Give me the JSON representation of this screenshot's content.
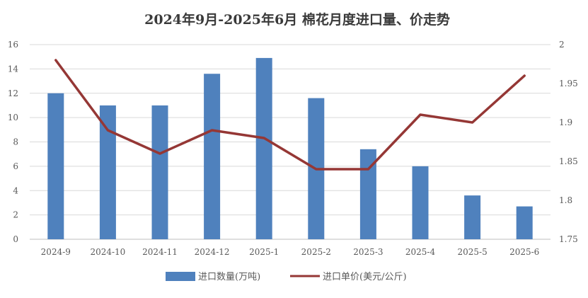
{
  "chart_data": {
    "type": "bar",
    "title": "2024年9月-2025年6月 棉花月度进口量、价走势",
    "categories": [
      "2024-9",
      "2024-10",
      "2024-11",
      "2024-12",
      "2025-1",
      "2025-2",
      "2025-3",
      "2025-4",
      "2025-5",
      "2025-6"
    ],
    "series": [
      {
        "name": "进口数量(万吨)",
        "type": "bar",
        "axis": "left",
        "color": "#4f81bd",
        "values": [
          12.0,
          11.0,
          11.0,
          13.6,
          14.9,
          11.6,
          7.4,
          6.0,
          3.6,
          2.7
        ]
      },
      {
        "name": "进口单价(美元/公斤)",
        "type": "line",
        "axis": "right",
        "color": "#953735",
        "values": [
          1.98,
          1.89,
          1.86,
          1.89,
          1.88,
          1.84,
          1.84,
          1.91,
          1.9,
          1.96
        ]
      }
    ],
    "y_left": {
      "min": 0,
      "max": 16,
      "step": 2,
      "ticks": [
        "0",
        "2",
        "4",
        "6",
        "8",
        "10",
        "12",
        "14",
        "16"
      ]
    },
    "y_right": {
      "min": 1.75,
      "max": 2.0,
      "step": 0.05,
      "ticks": [
        "1.75",
        "1.8",
        "1.85",
        "1.9",
        "1.95",
        "2"
      ]
    },
    "grid": true,
    "legend_position": "bottom"
  }
}
